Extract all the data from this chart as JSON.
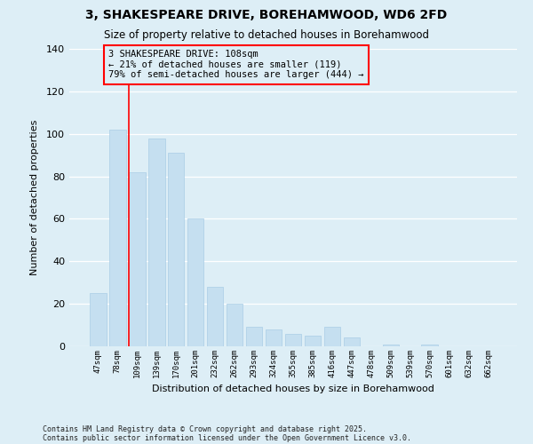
{
  "title": "3, SHAKESPEARE DRIVE, BOREHAMWOOD, WD6 2FD",
  "subtitle": "Size of property relative to detached houses in Borehamwood",
  "xlabel": "Distribution of detached houses by size in Borehamwood",
  "ylabel": "Number of detached properties",
  "background_color": "#ddeef6",
  "bar_color": "#c5dff0",
  "bar_edge_color": "#aacde6",
  "categories": [
    "47sqm",
    "78sqm",
    "109sqm",
    "139sqm",
    "170sqm",
    "201sqm",
    "232sqm",
    "262sqm",
    "293sqm",
    "324sqm",
    "355sqm",
    "385sqm",
    "416sqm",
    "447sqm",
    "478sqm",
    "509sqm",
    "539sqm",
    "570sqm",
    "601sqm",
    "632sqm",
    "662sqm"
  ],
  "values": [
    25,
    102,
    82,
    98,
    91,
    60,
    28,
    20,
    9,
    8,
    6,
    5,
    9,
    4,
    0,
    1,
    0,
    1,
    0,
    0,
    0
  ],
  "ylim": [
    0,
    140
  ],
  "yticks": [
    0,
    20,
    40,
    60,
    80,
    100,
    120,
    140
  ],
  "red_line_index": 2,
  "annotation_title": "3 SHAKESPEARE DRIVE: 108sqm",
  "annotation_line1": "← 21% of detached houses are smaller (119)",
  "annotation_line2": "79% of semi-detached houses are larger (444) →",
  "footnote1": "Contains HM Land Registry data © Crown copyright and database right 2025.",
  "footnote2": "Contains public sector information licensed under the Open Government Licence v3.0."
}
